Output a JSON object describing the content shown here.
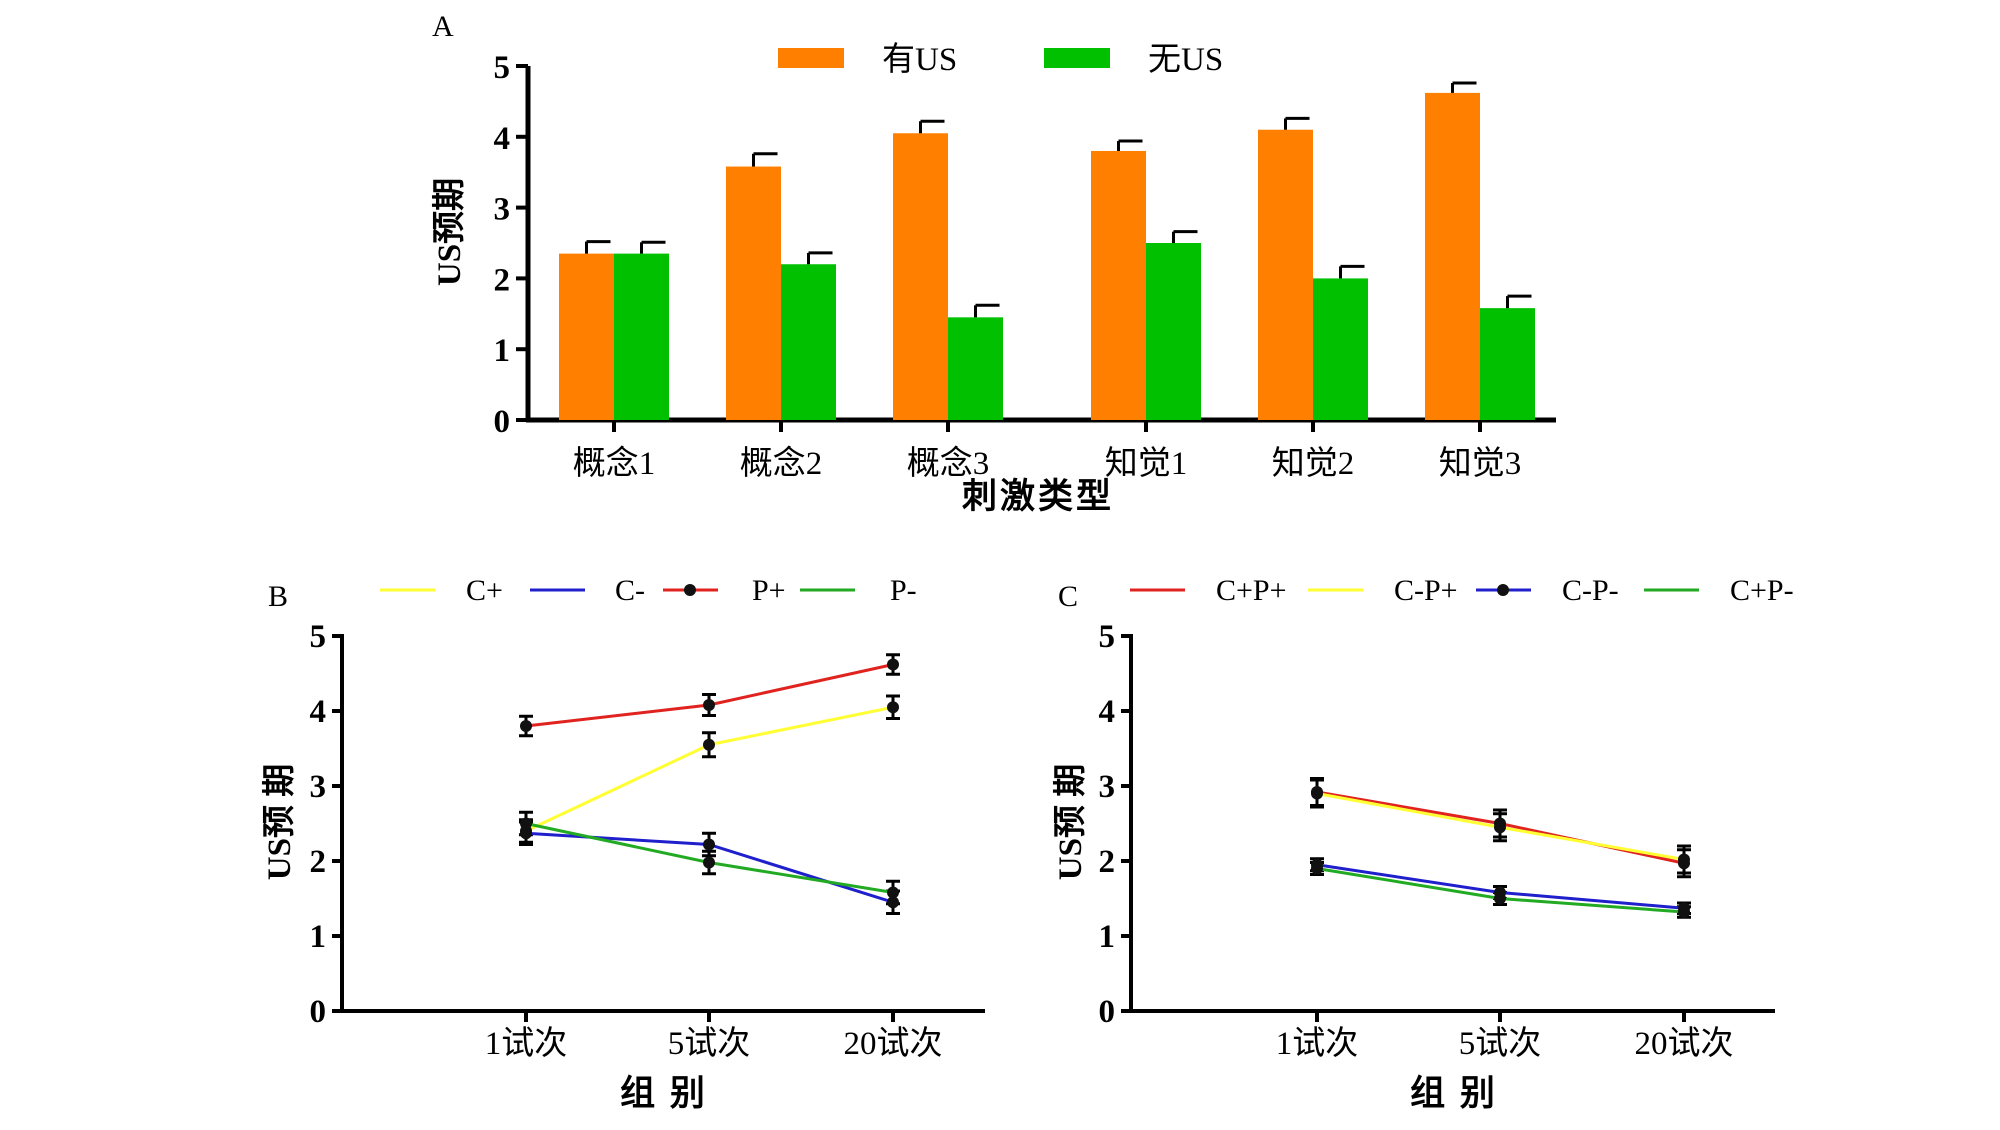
{
  "chart_data": [
    {
      "panel": "A",
      "type": "bar",
      "categories": [
        "概念1",
        "概念2",
        "概念3",
        "知觉1",
        "知觉2",
        "知觉3"
      ],
      "series": [
        {
          "name": "有US",
          "color": "#FF8000",
          "values": [
            2.35,
            3.58,
            4.05,
            3.8,
            4.1,
            4.62
          ],
          "errors": [
            0.17,
            0.18,
            0.17,
            0.14,
            0.16,
            0.14
          ]
        },
        {
          "name": "无US",
          "color": "#00C000",
          "values": [
            2.35,
            2.2,
            1.45,
            2.5,
            2.0,
            1.58
          ],
          "errors": [
            0.16,
            0.16,
            0.17,
            0.16,
            0.17,
            0.17
          ]
        }
      ],
      "xlabel": "刺激类型",
      "ylabel": "US预期",
      "ylim": [
        0,
        5
      ],
      "yticks": [
        0,
        1,
        2,
        3,
        4,
        5
      ],
      "legend_position": "top"
    },
    {
      "panel": "B",
      "type": "line",
      "x": [
        "1试次",
        "5试次",
        "20试次"
      ],
      "series": [
        {
          "name": "C+",
          "color": "#FFFF33",
          "values": [
            2.4,
            3.55,
            4.05
          ],
          "errors": [
            0.15,
            0.16,
            0.15
          ]
        },
        {
          "name": "C-",
          "color": "#1F1FCC",
          "values": [
            2.37,
            2.22,
            1.45
          ],
          "errors": [
            0.15,
            0.15,
            0.15
          ]
        },
        {
          "name": "P+",
          "color": "#E0231F",
          "values": [
            3.8,
            4.08,
            4.62
          ],
          "errors": [
            0.13,
            0.14,
            0.13
          ]
        },
        {
          "name": "P-",
          "color": "#22AA22",
          "values": [
            2.5,
            1.98,
            1.58
          ],
          "errors": [
            0.15,
            0.15,
            0.15
          ]
        }
      ],
      "xlabel": "组 别",
      "ylabel": "US预 期",
      "ylim": [
        0,
        5
      ],
      "yticks": [
        0,
        1,
        2,
        3,
        4,
        5
      ],
      "legend_position": "top"
    },
    {
      "panel": "C",
      "type": "line",
      "x": [
        "1试次",
        "5试次",
        "20试次"
      ],
      "series": [
        {
          "name": "C+P+",
          "color": "#E0231F",
          "values": [
            2.92,
            2.5,
            1.97
          ],
          "errors": [
            0.18,
            0.18,
            0.18
          ]
        },
        {
          "name": "C-P+",
          "color": "#FFFF33",
          "values": [
            2.9,
            2.45,
            2.02
          ],
          "errors": [
            0.18,
            0.18,
            0.18
          ]
        },
        {
          "name": "C-P-",
          "color": "#1F1FCC",
          "values": [
            1.95,
            1.58,
            1.37
          ],
          "errors": [
            0.08,
            0.08,
            0.07
          ]
        },
        {
          "name": "C+P-",
          "color": "#22AA22",
          "values": [
            1.9,
            1.5,
            1.32
          ],
          "errors": [
            0.08,
            0.08,
            0.07
          ]
        }
      ],
      "xlabel": "组 别",
      "ylabel": "US预 期",
      "ylim": [
        0,
        5
      ],
      "yticks": [
        0,
        1,
        2,
        3,
        4,
        5
      ],
      "legend_position": "top"
    }
  ]
}
